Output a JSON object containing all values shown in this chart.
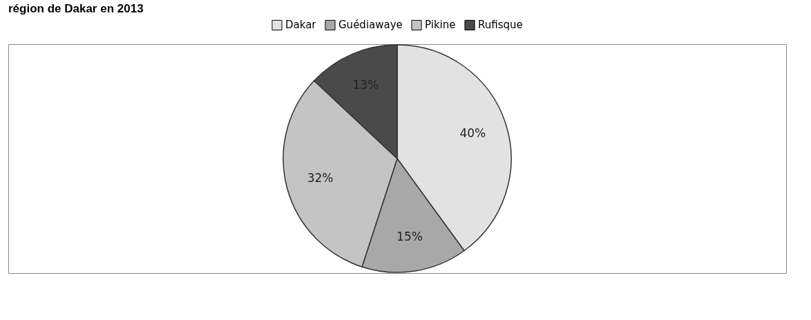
{
  "chart_data": {
    "type": "pie",
    "title": "région de Dakar en 2013",
    "categories": [
      "Dakar",
      "Guédiawaye",
      "Pikine",
      "Rufisque"
    ],
    "values": [
      40,
      15,
      32,
      13
    ],
    "value_labels": [
      "40%",
      "15%",
      "32%",
      "13%"
    ],
    "colors": [
      "#e2e2e2",
      "#a8a8a8",
      "#c4c4c4",
      "#4a4a4a"
    ],
    "legend": "top"
  }
}
